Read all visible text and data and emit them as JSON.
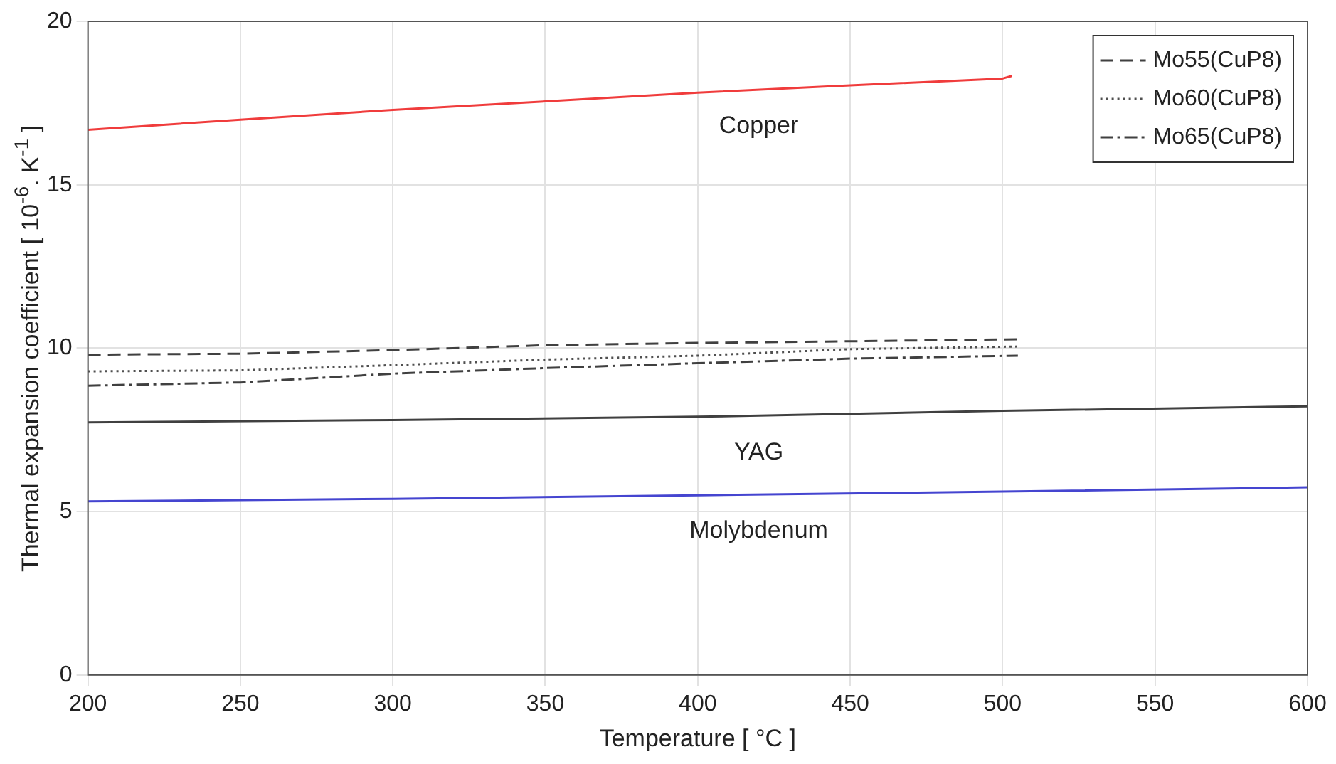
{
  "chart_data": {
    "type": "line",
    "xlabel": "Temperature [ °C ]",
    "ylabel": "Thermal expansion coefficient [ 10$^{-6}$. K$^{-1}$ ]",
    "series": [
      {
        "name": "Copper",
        "color": "#f03c3c",
        "x": [
          200,
          250,
          300,
          350,
          400,
          450,
          500,
          503
        ],
        "values": [
          16.68,
          16.99,
          17.29,
          17.55,
          17.82,
          18.04,
          18.25,
          18.33
        ]
      },
      {
        "name": "Mo55(CuP8)",
        "color": "#404040",
        "line_style": "dashed",
        "x": [
          200,
          250,
          300,
          350,
          400,
          450,
          505
        ],
        "values": [
          9.8,
          9.83,
          9.94,
          10.09,
          10.16,
          10.21,
          10.27
        ]
      },
      {
        "name": "Mo60(CuP8)",
        "color": "#505050",
        "line_style": "dotted",
        "x": [
          200,
          250,
          300,
          350,
          400,
          450,
          505
        ],
        "values": [
          9.29,
          9.32,
          9.48,
          9.65,
          9.77,
          9.97,
          10.05
        ]
      },
      {
        "name": "Mo65(CuP8)",
        "color": "#404040",
        "line_style": "dashdot",
        "x": [
          200,
          250,
          300,
          350,
          400,
          450,
          505
        ],
        "values": [
          8.85,
          8.95,
          9.22,
          9.39,
          9.54,
          9.68,
          9.77
        ]
      },
      {
        "name": "YAG",
        "color": "#404040",
        "x": [
          200,
          300,
          400,
          500,
          600
        ],
        "values": [
          7.73,
          7.8,
          7.9,
          8.08,
          8.22
        ]
      },
      {
        "name": "Molybdenum",
        "color": "#4545d0",
        "x": [
          200,
          300,
          400,
          500,
          600
        ],
        "values": [
          5.31,
          5.39,
          5.5,
          5.61,
          5.74
        ]
      }
    ],
    "xlim": [
      200,
      600
    ],
    "xticks": [
      200,
      250,
      300,
      350,
      400,
      450,
      500,
      550,
      600
    ],
    "ylim": [
      0,
      20
    ],
    "yticks": [
      0,
      5,
      10,
      15,
      20
    ],
    "grid": true,
    "legend": "top right",
    "marker": "none"
  }
}
